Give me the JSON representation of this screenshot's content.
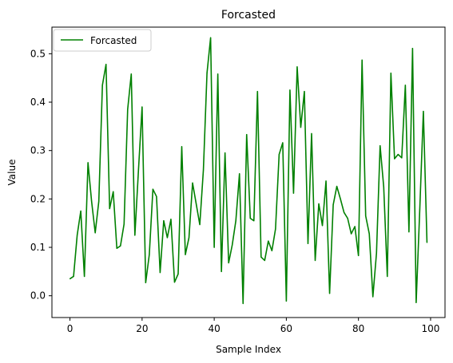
{
  "chart_data": {
    "type": "line",
    "title": "Forcasted",
    "xlabel": "Sample Index",
    "ylabel": "Value",
    "xlim": [
      -5,
      104
    ],
    "ylim": [
      -0.045,
      0.555
    ],
    "xticks": [
      0,
      20,
      40,
      60,
      80,
      100
    ],
    "xtick_labels": [
      "0",
      "20",
      "40",
      "60",
      "80",
      "100"
    ],
    "yticks": [
      0.0,
      0.1,
      0.2,
      0.3,
      0.4,
      0.5
    ],
    "ytick_labels": [
      "0.0",
      "0.1",
      "0.2",
      "0.3",
      "0.4",
      "0.5"
    ],
    "grid": false,
    "legend_position": "upper-left",
    "series": [
      {
        "name": "Forcasted",
        "color": "#008000",
        "x": [
          0,
          1,
          2,
          3,
          4,
          5,
          6,
          7,
          8,
          9,
          10,
          11,
          12,
          13,
          14,
          15,
          16,
          17,
          18,
          19,
          20,
          21,
          22,
          23,
          24,
          25,
          26,
          27,
          28,
          29,
          30,
          31,
          32,
          33,
          34,
          35,
          36,
          37,
          38,
          39,
          40,
          41,
          42,
          43,
          44,
          45,
          46,
          47,
          48,
          49,
          50,
          51,
          52,
          53,
          54,
          55,
          56,
          57,
          58,
          59,
          60,
          61,
          62,
          63,
          64,
          65,
          66,
          67,
          68,
          69,
          70,
          71,
          72,
          73,
          74,
          75,
          76,
          77,
          78,
          79,
          80,
          81,
          82,
          83,
          84,
          85,
          86,
          87,
          88,
          89,
          90,
          91,
          92,
          93,
          94,
          95,
          96,
          97,
          98,
          99
        ],
        "values": [
          0.035,
          0.04,
          0.125,
          0.175,
          0.04,
          0.275,
          0.195,
          0.13,
          0.195,
          0.435,
          0.478,
          0.18,
          0.215,
          0.098,
          0.103,
          0.148,
          0.385,
          0.458,
          0.125,
          0.26,
          0.39,
          0.027,
          0.085,
          0.22,
          0.205,
          0.048,
          0.155,
          0.12,
          0.158,
          0.028,
          0.045,
          0.308,
          0.085,
          0.12,
          0.233,
          0.19,
          0.147,
          0.26,
          0.46,
          0.533,
          0.1,
          0.458,
          0.05,
          0.295,
          0.068,
          0.105,
          0.155,
          0.252,
          -0.016,
          0.333,
          0.16,
          0.155,
          0.422,
          0.08,
          0.073,
          0.113,
          0.093,
          0.138,
          0.292,
          0.316,
          -0.011,
          0.425,
          0.212,
          0.473,
          0.348,
          0.422,
          0.108,
          0.335,
          0.073,
          0.19,
          0.145,
          0.237,
          0.005,
          0.188,
          0.226,
          0.2,
          0.172,
          0.16,
          0.128,
          0.143,
          0.083,
          0.487,
          0.165,
          0.128,
          -0.002,
          0.088,
          0.31,
          0.225,
          0.04,
          0.46,
          0.283,
          0.292,
          0.285,
          0.435,
          0.132,
          0.511,
          -0.014,
          0.178,
          0.381,
          0.11
        ]
      }
    ]
  }
}
